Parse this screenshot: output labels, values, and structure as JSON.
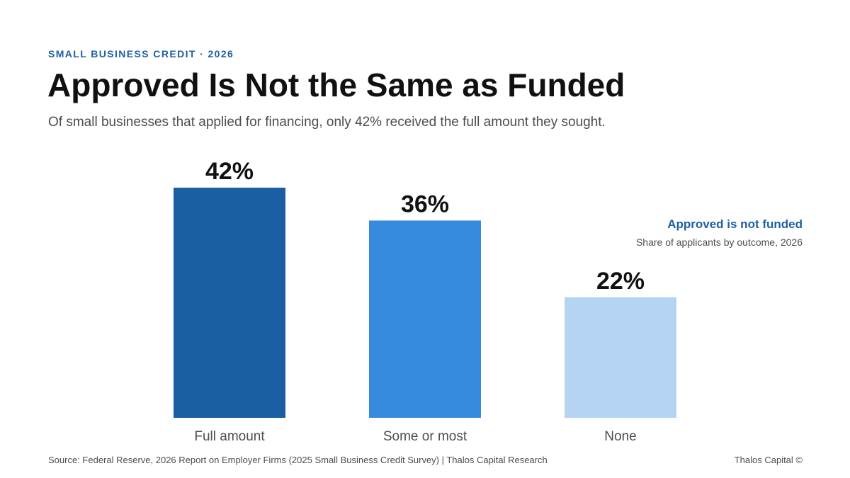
{
  "header": {
    "eyebrow": "SMALL BUSINESS CREDIT · 2026",
    "title": "Approved Is Not the Same as Funded",
    "subtitle": "Of small businesses that applied for financing, only 42% received the full amount they sought."
  },
  "annotation": {
    "title": "Approved is not funded",
    "subtitle": "Share of applicants by outcome, 2026"
  },
  "footer": {
    "source": "Source: Federal Reserve, 2026 Report on Employer Firms (2025 Small Business Credit Survey) | Thalos Capital Research",
    "brand": "Thalos Capital ©"
  },
  "colors": {
    "accent": "#1f5fa3",
    "bars": [
      "#1a5ea3",
      "#368bde",
      "#b5d4f2"
    ]
  },
  "chart_data": {
    "type": "bar",
    "categories": [
      "Full amount",
      "Some or most",
      "None"
    ],
    "values": [
      42,
      36,
      22
    ],
    "value_labels": [
      "42%",
      "36%",
      "22%"
    ],
    "title": "",
    "xlabel": "",
    "ylabel": "",
    "ylim": [
      0,
      42
    ],
    "grid": false,
    "legend": "none"
  }
}
